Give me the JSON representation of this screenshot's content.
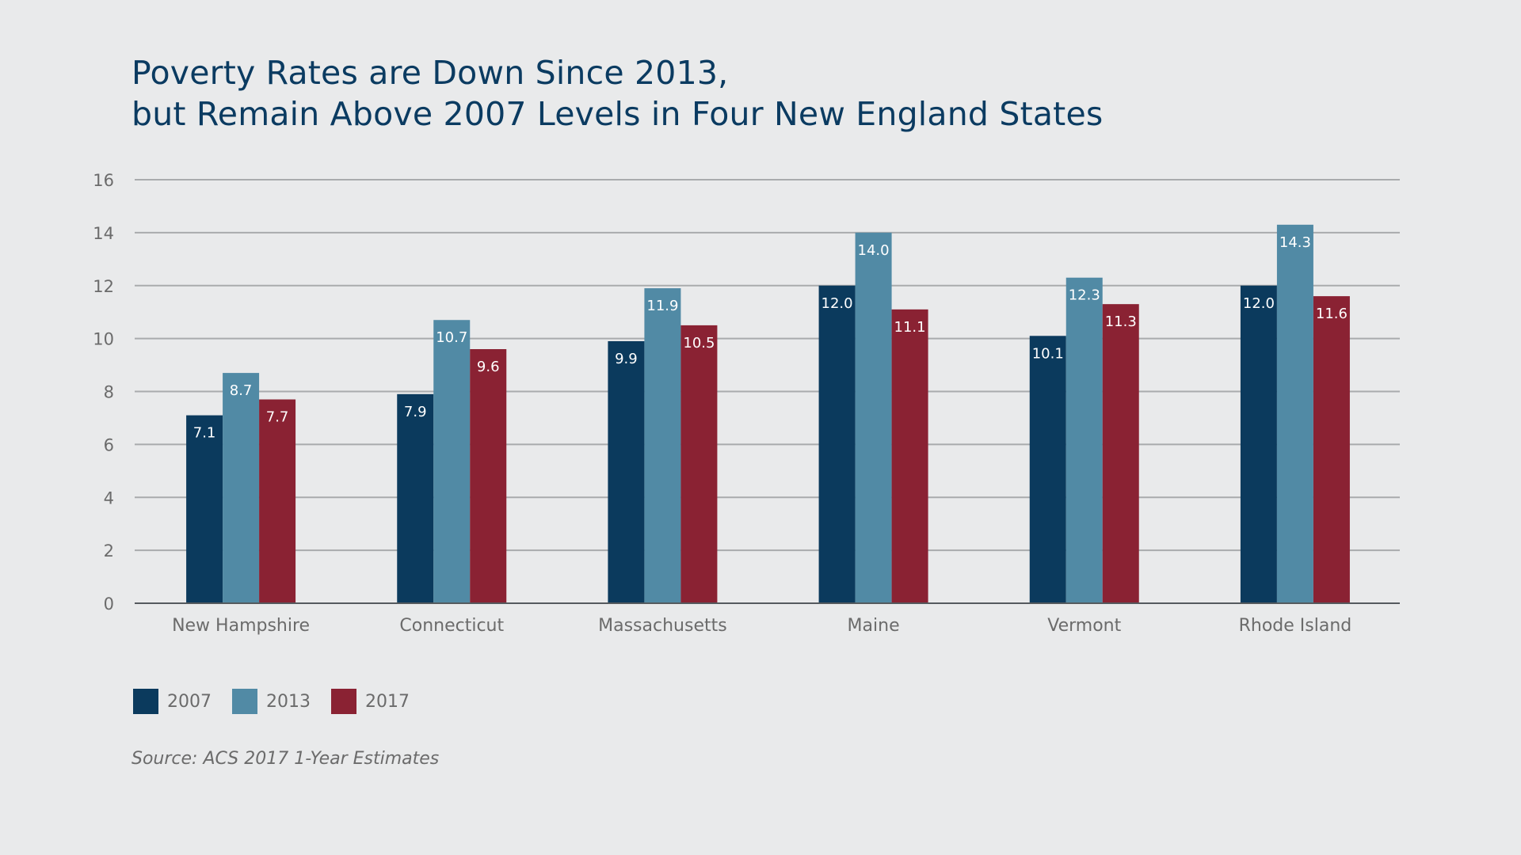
{
  "chart_data": {
    "type": "bar",
    "title_lines": [
      "Poverty Rates are Down Since 2013,",
      "but Remain Above 2007 Levels in Four New England States"
    ],
    "categories": [
      "New Hampshire",
      "Connecticut",
      "Massachusetts",
      "Maine",
      "Vermont",
      "Rhode Island"
    ],
    "series": [
      {
        "name": "2007",
        "color": "#0b3a5d",
        "values": [
          7.1,
          7.9,
          9.9,
          12.0,
          10.1,
          12.0
        ]
      },
      {
        "name": "2013",
        "color": "#518aa5",
        "values": [
          8.7,
          10.7,
          11.9,
          14.0,
          12.3,
          14.3
        ]
      },
      {
        "name": "2017",
        "color": "#8a2233",
        "values": [
          7.7,
          9.6,
          10.5,
          11.1,
          11.3,
          11.6
        ]
      }
    ],
    "ylim": [
      0,
      16
    ],
    "yticks": [
      0,
      2,
      4,
      6,
      8,
      10,
      12,
      14,
      16
    ],
    "grid": true,
    "legend_position": "bottom-left",
    "source": "Source: ACS 2017 1-Year Estimates"
  }
}
